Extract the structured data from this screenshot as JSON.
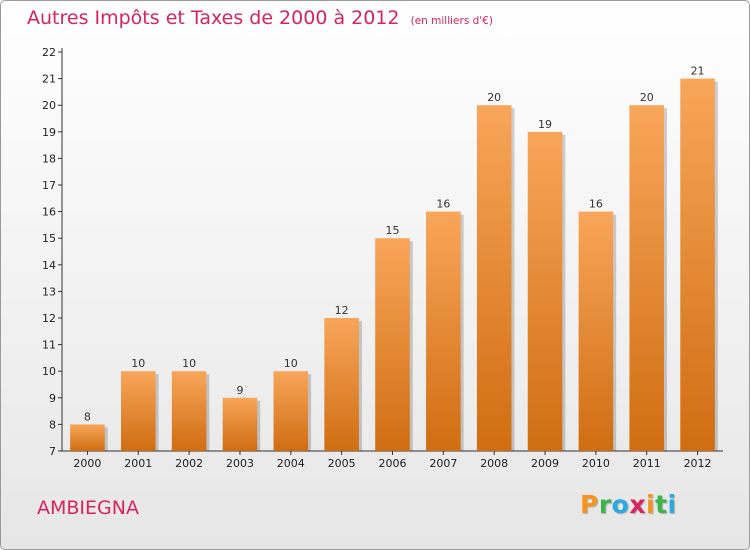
{
  "header": {
    "title": "Autres Impôts et Taxes de 2000 à 2012",
    "subtitle": "(en milliers d'€)"
  },
  "commune": "AMBIEGNA",
  "logo": {
    "letters": [
      "P",
      "r",
      "o",
      "x",
      "i",
      "t",
      "i"
    ],
    "colors": [
      "#f7941d",
      "#39b54a",
      "#29abe2",
      "#d9235f",
      "#f7941d",
      "#39b54a",
      "#29abe2"
    ]
  },
  "colors": {
    "bar_light": "#f8a65a",
    "bar_dark": "#d06d12",
    "accent": "#d9235f"
  },
  "chart_data": {
    "type": "bar",
    "title": "Autres Impôts et Taxes de 2000 à 2012",
    "subtitle": "(en milliers d'€)",
    "categories": [
      "2000",
      "2001",
      "2002",
      "2003",
      "2004",
      "2005",
      "2006",
      "2007",
      "2008",
      "2009",
      "2010",
      "2011",
      "2012"
    ],
    "values": [
      8,
      10,
      10,
      9,
      10,
      12,
      15,
      16,
      20,
      19,
      16,
      20,
      21
    ],
    "ylim": [
      7,
      22
    ],
    "yticks": [
      "7",
      "8",
      "9",
      "10",
      "11",
      "12",
      "13",
      "14",
      "15",
      "16",
      "17",
      "18",
      "19",
      "20",
      "21",
      "22"
    ],
    "xlabel": "",
    "ylabel": "",
    "grid": false,
    "legend": "none"
  }
}
